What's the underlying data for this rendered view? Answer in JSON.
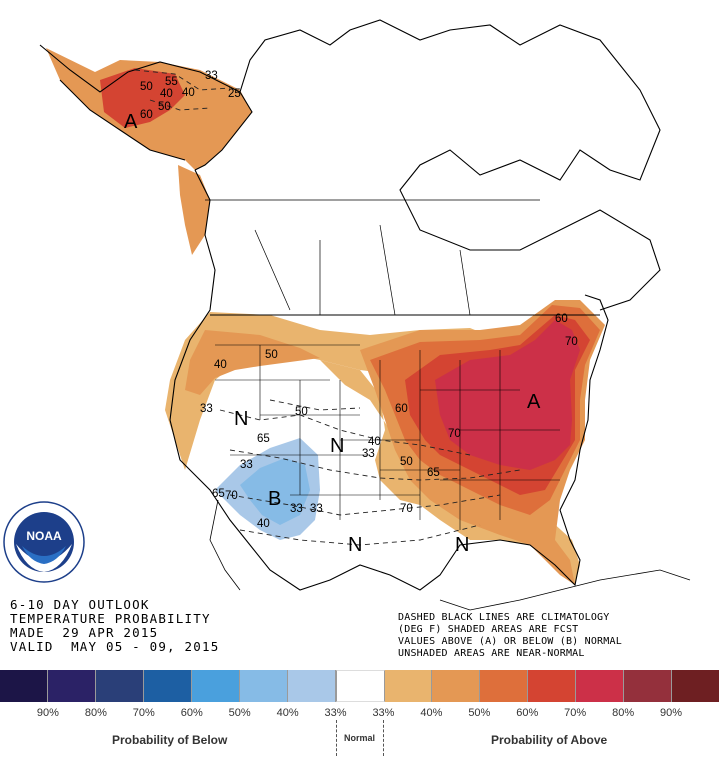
{
  "map": {
    "title_lines": [
      "6-10 DAY OUTLOOK",
      "TEMPERATURE PROBABILITY",
      "MADE  29 APR 2015",
      "VALID  MAY 05 - 09, 2015"
    ],
    "notes_lines": [
      "DASHED BLACK LINES ARE CLIMATOLOGY",
      "(DEG F) SHADED AREAS ARE FCST",
      "VALUES ABOVE (A) OR BELOW (B) NORMAL",
      "UNSHADED AREAS ARE NEAR-NORMAL"
    ],
    "logo_text": "NOAA",
    "logo_ring_text": "NATIONAL OCEANIC AND ATMOSPHERIC ADMINISTRATION · U.S. DEPARTMENT OF COMMERCE",
    "area_labels": {
      "above_alaska": "A",
      "above_east": "A",
      "below_southwest": "B",
      "normal_northwest": "N",
      "normal_central": "N",
      "normal_texas": "N",
      "normal_southeast": "N"
    },
    "contour_labels": {
      "ak_50a": "50",
      "ak_55": "55",
      "ak_33": "33",
      "ak_40a": "40",
      "ak_40b": "40",
      "ak_50b": "50",
      "ak_60": "60",
      "ak_25": "25",
      "ne_60": "60",
      "ne_70a": "70",
      "mw_60": "60",
      "mw_70": "70",
      "mw_50": "50",
      "mw_40": "40",
      "mw_33": "33",
      "tx_65": "65",
      "tx_70": "70",
      "pnw_40": "40",
      "pnw_33": "33",
      "nw_50": "50",
      "rk_50": "50",
      "rk_33": "33",
      "sw_65a": "65",
      "sw_33": "33",
      "sw_65b": "65",
      "sw_70": "70",
      "sw_40": "40",
      "sw_33b": "33"
    }
  },
  "legend": {
    "colors": [
      "#1c1547",
      "#2b2266",
      "#2a3f78",
      "#1d5fa3",
      "#4aa0dd",
      "#86bbe6",
      "#a9c8e8",
      "#ffffff",
      "#e9b46e",
      "#e49854",
      "#de6f3b",
      "#d44432",
      "#cc3048",
      "#94303c",
      "#6e1f22"
    ],
    "percent_labels": [
      "90%",
      "80%",
      "70%",
      "60%",
      "50%",
      "40%",
      "33%",
      "33%",
      "40%",
      "50%",
      "60%",
      "70%",
      "80%",
      "90%"
    ],
    "below_caption": "Probability of Below",
    "normal_caption": "Normal",
    "above_caption": "Probability of Above"
  }
}
